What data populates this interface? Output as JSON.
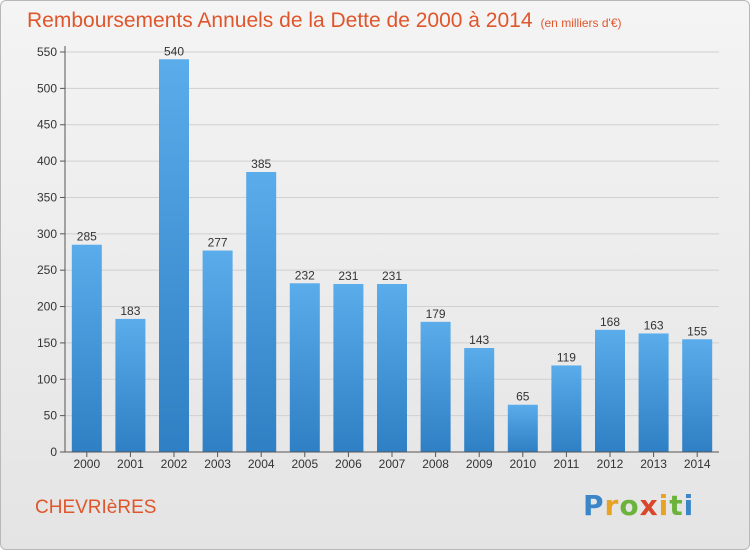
{
  "header": {
    "title": "Remboursements Annuels de la Dette de 2000 à 2014",
    "unit": "(en milliers d'€)"
  },
  "footer": {
    "commune": "CHEVRIèRES",
    "logo": "Proxiti"
  },
  "colors": {
    "bar_top": "#5aacea",
    "bar_bottom": "#2f7fc4",
    "title": "#e0562c",
    "grid": "#d0d0d0"
  },
  "chart_data": {
    "type": "bar",
    "title": "Remboursements Annuels de la Dette de 2000 à 2014",
    "categories": [
      "2000",
      "2001",
      "2002",
      "2003",
      "2004",
      "2005",
      "2006",
      "2007",
      "2008",
      "2009",
      "2010",
      "2011",
      "2012",
      "2013",
      "2014"
    ],
    "values": [
      285,
      183,
      540,
      277,
      385,
      232,
      231,
      231,
      179,
      143,
      65,
      119,
      168,
      163,
      155
    ],
    "ylim": [
      0,
      550
    ],
    "yticks": [
      0,
      50,
      100,
      150,
      200,
      250,
      300,
      350,
      400,
      450,
      500,
      550
    ],
    "grid": true,
    "data_labels": true
  }
}
